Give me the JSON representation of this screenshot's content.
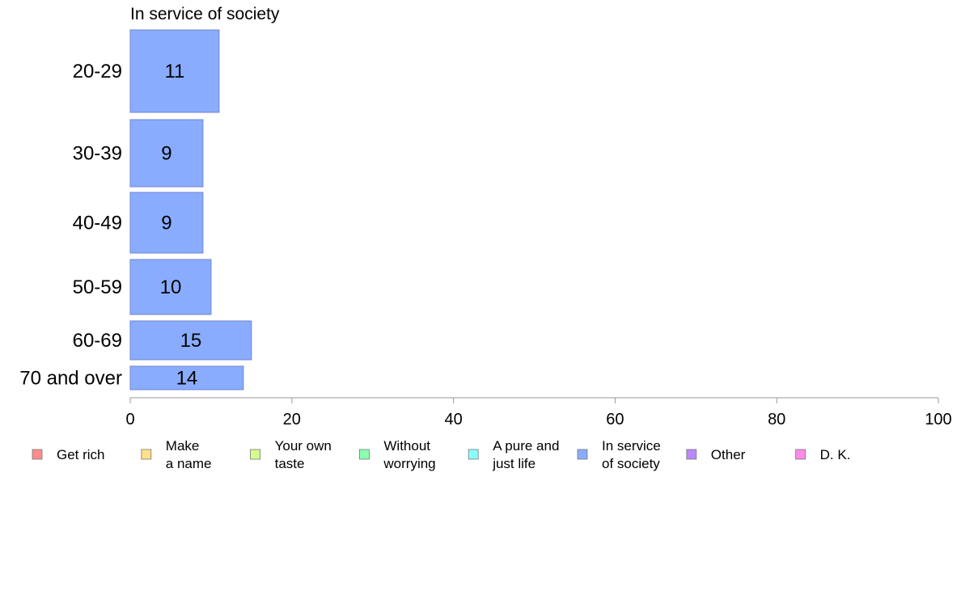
{
  "chart_data": {
    "type": "bar",
    "orientation": "horizontal",
    "title": "In service of society",
    "categories": [
      "20-29",
      "30-39",
      "40-49",
      "50-59",
      "60-69",
      "70 and over"
    ],
    "values": [
      11,
      9,
      9,
      10,
      15,
      14
    ],
    "value_labels": [
      "11",
      "9",
      "9",
      "10",
      "15",
      "14"
    ],
    "xlim": [
      0,
      100
    ],
    "x_ticks": [
      0,
      20,
      40,
      60,
      80,
      100
    ],
    "x_tick_labels": [
      "0",
      "20",
      "40",
      "60",
      "80",
      "100"
    ],
    "grid": false,
    "bar_color": "#8aacff",
    "bar_edge_color": "#6f85cc",
    "legend": {
      "placement": "bottom",
      "entries": [
        {
          "lines": [
            "Get rich"
          ],
          "color": "#ff8c8c"
        },
        {
          "lines": [
            "Make",
            "a name"
          ],
          "color": "#ffe08a"
        },
        {
          "lines": [
            "Your own",
            "taste"
          ],
          "color": "#d4ff8a"
        },
        {
          "lines": [
            "Without",
            "worrying"
          ],
          "color": "#8affad"
        },
        {
          "lines": [
            "A pure and",
            "just life"
          ],
          "color": "#8affff"
        },
        {
          "lines": [
            "In service",
            "of society"
          ],
          "color": "#8aacff"
        },
        {
          "lines": [
            "Other"
          ],
          "color": "#b98aff"
        },
        {
          "lines": [
            "D. K."
          ],
          "color": "#ff8ae8"
        }
      ]
    }
  }
}
